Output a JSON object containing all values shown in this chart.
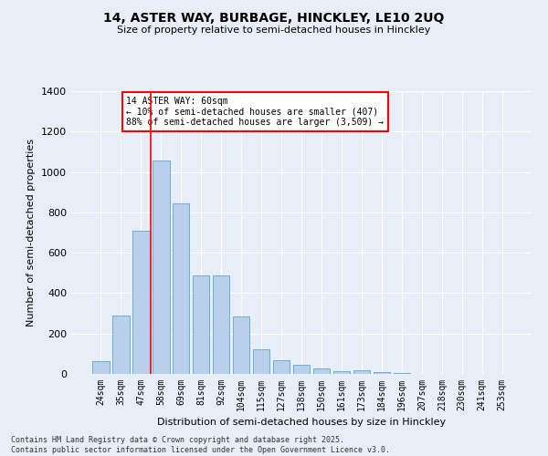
{
  "title1": "14, ASTER WAY, BURBAGE, HINCKLEY, LE10 2UQ",
  "title2": "Size of property relative to semi-detached houses in Hinckley",
  "xlabel": "Distribution of semi-detached houses by size in Hinckley",
  "ylabel": "Number of semi-detached properties",
  "categories": [
    "24sqm",
    "35sqm",
    "47sqm",
    "58sqm",
    "69sqm",
    "81sqm",
    "92sqm",
    "104sqm",
    "115sqm",
    "127sqm",
    "138sqm",
    "150sqm",
    "161sqm",
    "173sqm",
    "184sqm",
    "196sqm",
    "207sqm",
    "218sqm",
    "230sqm",
    "241sqm",
    "253sqm"
  ],
  "values": [
    65,
    290,
    710,
    1055,
    845,
    490,
    490,
    285,
    120,
    70,
    45,
    25,
    15,
    20,
    10,
    3,
    1,
    0,
    0,
    0,
    0
  ],
  "bar_color": "#b8d0eb",
  "bar_edge_color": "#6aaed6",
  "annotation_text": "14 ASTER WAY: 60sqm\n← 10% of semi-detached houses are smaller (407)\n88% of semi-detached houses are larger (3,509) →",
  "background_color": "#e8eef8",
  "grid_color": "#ffffff",
  "footer_text": "Contains HM Land Registry data © Crown copyright and database right 2025.\nContains public sector information licensed under the Open Government Licence v3.0.",
  "ylim": [
    0,
    1400
  ],
  "yticks": [
    0,
    200,
    400,
    600,
    800,
    1000,
    1200,
    1400
  ],
  "vline_pos": 2.5
}
